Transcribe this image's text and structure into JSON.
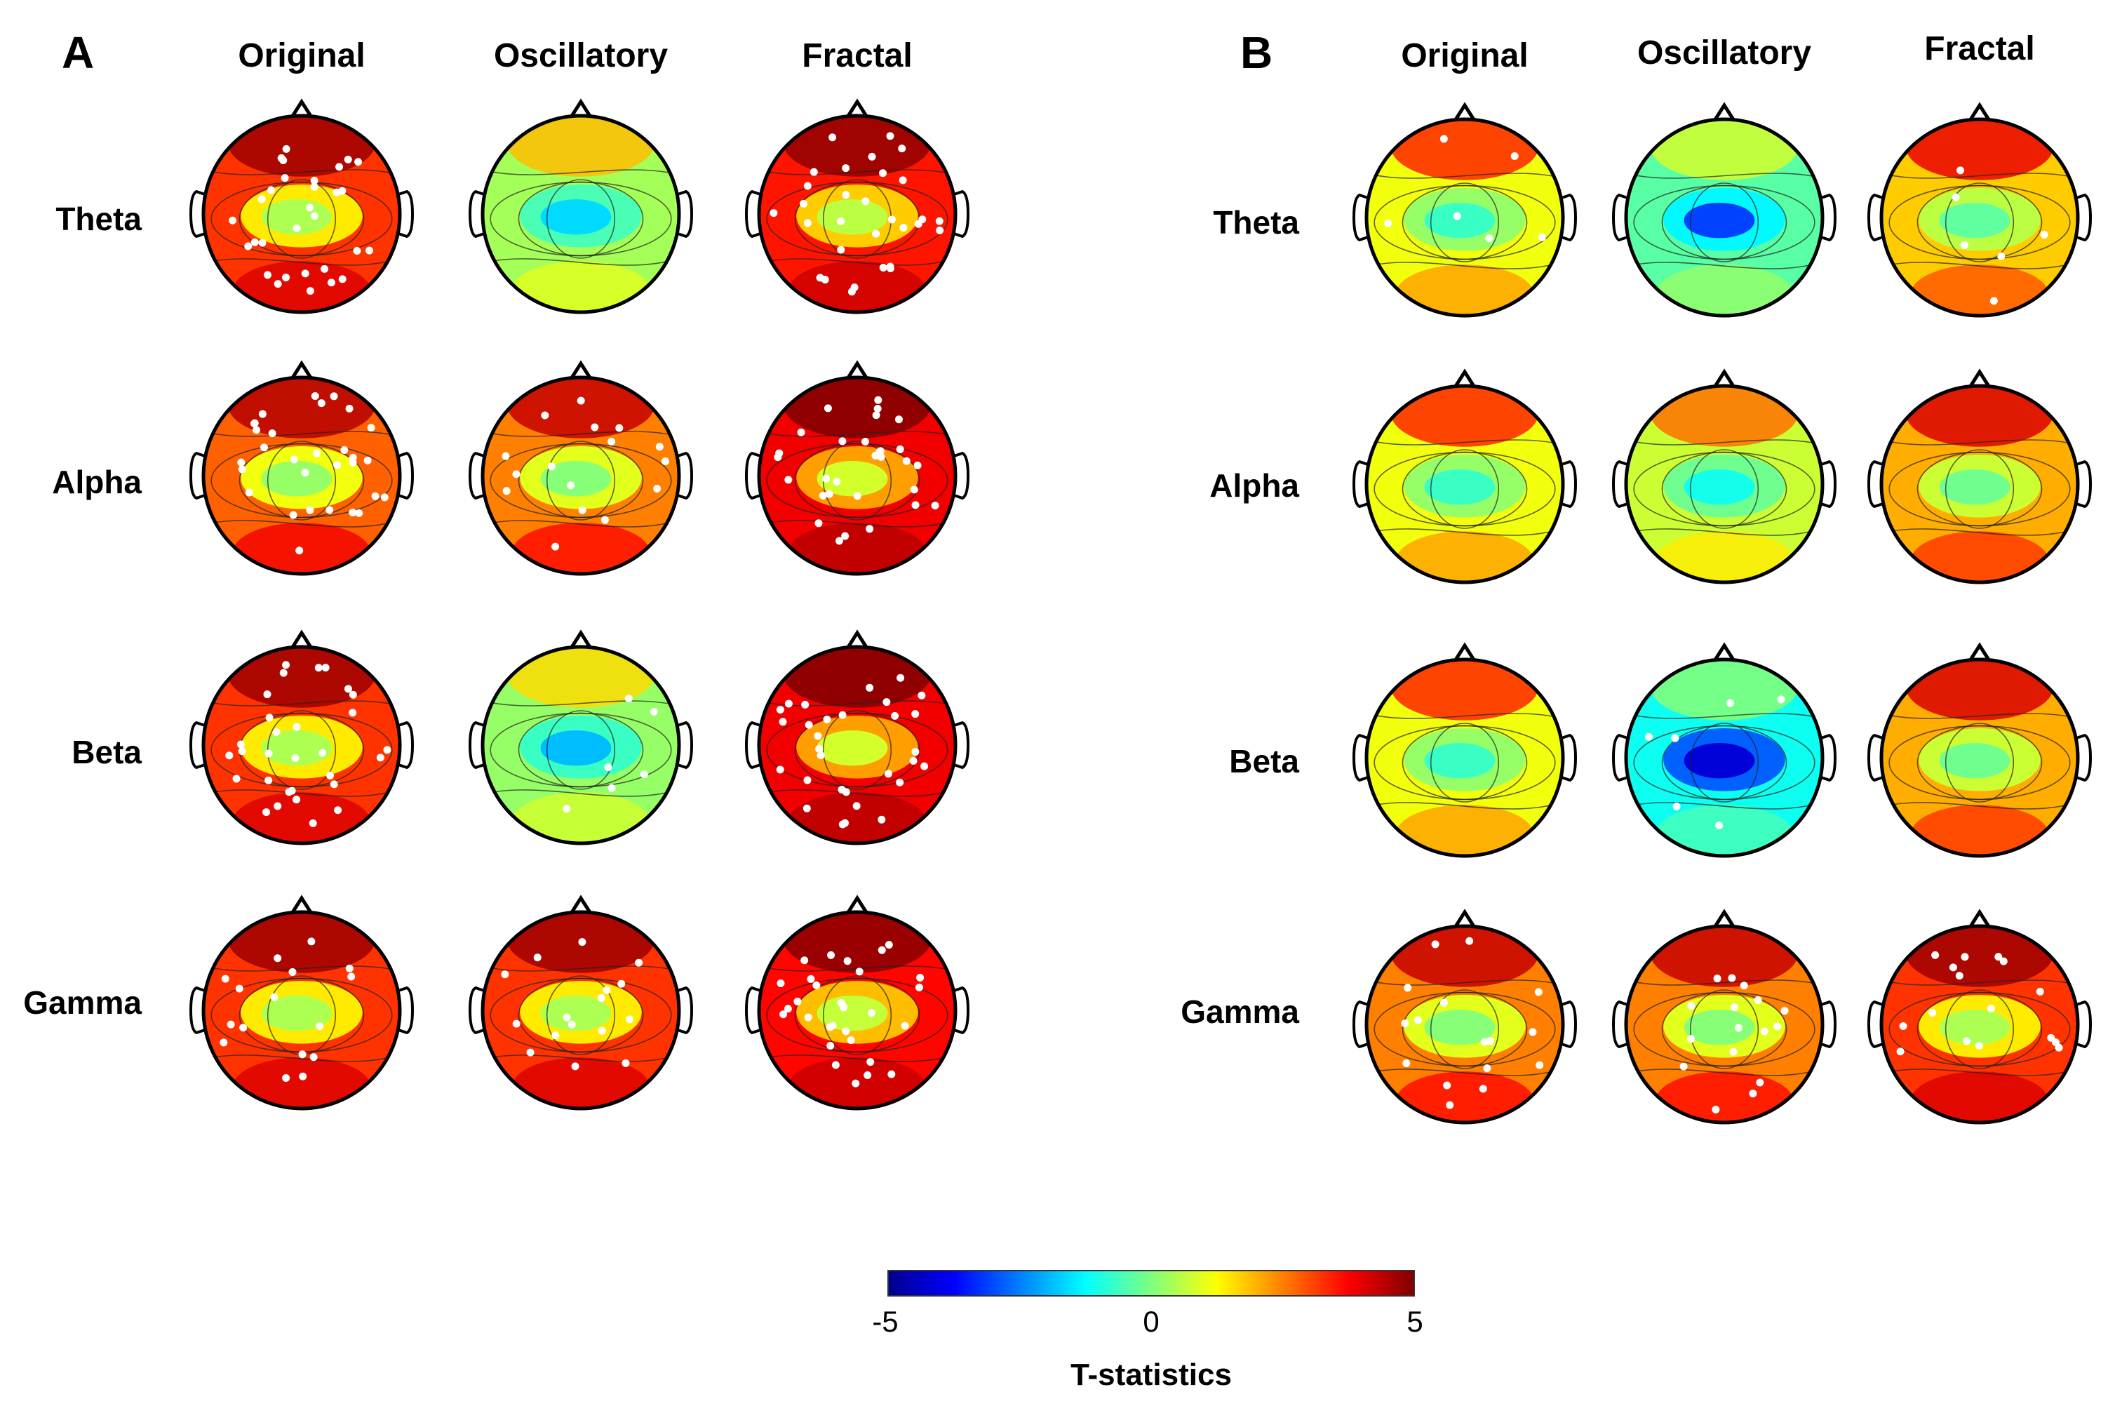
{
  "panels": [
    {
      "letter": "A",
      "columns": [
        "Original",
        "Oscillatory",
        "Fractal"
      ],
      "rows": [
        "Theta",
        "Alpha",
        "Beta",
        "Gamma"
      ],
      "maps": [
        [
          {
            "level": 3.0,
            "sig": "many"
          },
          {
            "level": 0.5,
            "sig": "none"
          },
          {
            "level": 3.2,
            "sig": "many"
          }
        ],
        [
          {
            "level": 2.7,
            "sig": "many"
          },
          {
            "level": 2.5,
            "sig": "some"
          },
          {
            "level": 3.5,
            "sig": "many"
          }
        ],
        [
          {
            "level": 3.0,
            "sig": "many"
          },
          {
            "level": 0.3,
            "sig": "few"
          },
          {
            "level": 3.5,
            "sig": "many"
          }
        ],
        [
          {
            "level": 3.0,
            "sig": "some"
          },
          {
            "level": 3.0,
            "sig": "some"
          },
          {
            "level": 3.3,
            "sig": "many"
          }
        ]
      ]
    },
    {
      "letter": "B",
      "columns": [
        "Original",
        "Oscillatory",
        "Fractal"
      ],
      "rows": [
        "Theta",
        "Alpha",
        "Beta",
        "Gamma"
      ],
      "maps": [
        [
          {
            "level": 1.5,
            "sig": "few"
          },
          {
            "level": -0.5,
            "sig": "none"
          },
          {
            "level": 2.0,
            "sig": "few"
          }
        ],
        [
          {
            "level": 1.5,
            "sig": "none"
          },
          {
            "level": 1.0,
            "sig": "none"
          },
          {
            "level": 2.2,
            "sig": "none"
          }
        ],
        [
          {
            "level": 1.5,
            "sig": "none"
          },
          {
            "level": -1.5,
            "sig": "few"
          },
          {
            "level": 2.2,
            "sig": "none"
          }
        ],
        [
          {
            "level": 2.5,
            "sig": "some"
          },
          {
            "level": 2.5,
            "sig": "some"
          },
          {
            "level": 3.0,
            "sig": "some"
          }
        ]
      ]
    }
  ],
  "colorbar": {
    "label": "T-statistics",
    "min": -5,
    "max": 5,
    "ticks": [
      "-5",
      "0",
      "5"
    ],
    "colors": [
      "#00008f",
      "#0000ff",
      "#00ffff",
      "#7fff7f",
      "#ffff00",
      "#ff0000",
      "#800000"
    ]
  }
}
